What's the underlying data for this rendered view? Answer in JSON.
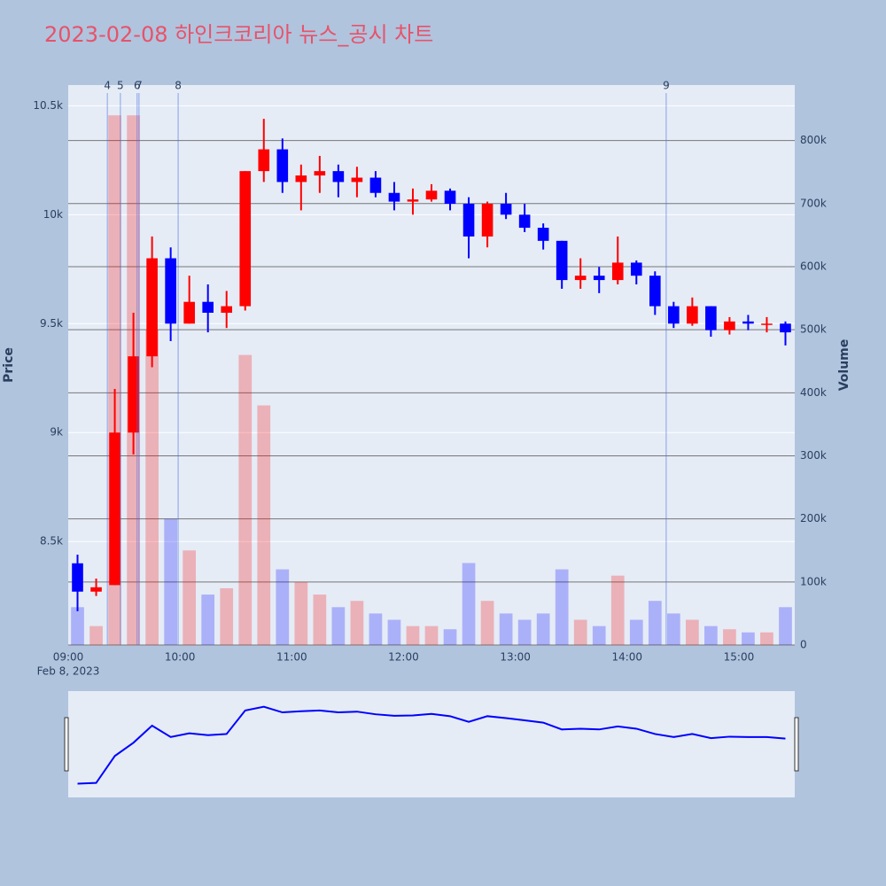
{
  "chart_data": {
    "type": "candlestick",
    "title": "2023-02-08 하인크코리아 뉴스_공시 차트",
    "x": [
      "09:00",
      "09:10",
      "09:20",
      "09:30",
      "09:40",
      "09:50",
      "10:00",
      "10:10",
      "10:20",
      "10:30",
      "10:40",
      "10:50",
      "11:00",
      "11:10",
      "11:20",
      "11:30",
      "11:40",
      "11:50",
      "12:00",
      "12:10",
      "12:20",
      "12:30",
      "12:40",
      "12:50",
      "13:00",
      "13:10",
      "13:20",
      "13:30",
      "13:40",
      "13:50",
      "14:00",
      "14:10",
      "14:20",
      "14:30",
      "14:40",
      "14:50",
      "15:00",
      "15:10",
      "15:20"
    ],
    "open": [
      8400,
      8270,
      8300,
      9000,
      9350,
      9800,
      9500,
      9600,
      9550,
      9580,
      10200,
      10300,
      10150,
      10180,
      10200,
      10150,
      10170,
      10100,
      10060,
      10070,
      10110,
      10050,
      9900,
      10050,
      10000,
      9940,
      9880,
      9700,
      9720,
      9700,
      9780,
      9720,
      9580,
      9500,
      9580,
      9470,
      9510,
      9500,
      9500
    ],
    "high": [
      8440,
      8330,
      9200,
      9550,
      9900,
      9850,
      9720,
      9680,
      9650,
      10200,
      10440,
      10350,
      10230,
      10270,
      10230,
      10220,
      10200,
      10150,
      10120,
      10140,
      10120,
      10080,
      10060,
      10100,
      10050,
      9960,
      9880,
      9800,
      9760,
      9900,
      9790,
      9740,
      9600,
      9620,
      9580,
      9530,
      9540,
      9530,
      9510
    ],
    "low": [
      8180,
      8250,
      8300,
      8900,
      9300,
      9420,
      9500,
      9460,
      9480,
      9560,
      10150,
      10100,
      10020,
      10100,
      10080,
      10080,
      10080,
      10020,
      10000,
      10060,
      10020,
      9800,
      9850,
      9980,
      9920,
      9840,
      9660,
      9660,
      9640,
      9680,
      9680,
      9540,
      9480,
      9490,
      9440,
      9450,
      9470,
      9460,
      9400
    ],
    "close": [
      8270,
      8290,
      9000,
      9350,
      9800,
      9500,
      9600,
      9550,
      9580,
      10200,
      10300,
      10150,
      10180,
      10200,
      10150,
      10170,
      10100,
      10060,
      10070,
      10110,
      10050,
      9900,
      10050,
      10000,
      9940,
      9880,
      9700,
      9720,
      9700,
      9780,
      9720,
      9580,
      9500,
      9580,
      9470,
      9510,
      9500,
      9500,
      9460
    ],
    "volume": [
      60000,
      30000,
      840000,
      840000,
      500000,
      200000,
      150000,
      80000,
      90000,
      460000,
      380000,
      120000,
      100000,
      80000,
      60000,
      70000,
      50000,
      40000,
      30000,
      30000,
      25000,
      130000,
      70000,
      50000,
      40000,
      50000,
      120000,
      40000,
      30000,
      110000,
      40000,
      70000,
      50000,
      40000,
      30000,
      25000,
      20000,
      20000,
      60000
    ],
    "increasing_color": "#ff0000",
    "decreasing_color": "#0000ff",
    "xlim": [
      "09:00",
      "15:30"
    ],
    "xticks": [
      "09:00",
      "10:00",
      "11:00",
      "12:00",
      "13:00",
      "14:00",
      "15:00"
    ],
    "x_subtitle": "Feb 8, 2023",
    "ylabel": "Price",
    "ylim": [
      8025,
      10595
    ],
    "yticks": [
      {
        "value": 8500,
        "label": "8.5k"
      },
      {
        "value": 9000,
        "label": "9k"
      },
      {
        "value": 9500,
        "label": "9.5k"
      },
      {
        "value": 10000,
        "label": "10k"
      },
      {
        "value": 10500,
        "label": "10.5k"
      }
    ],
    "y2label": "Volume",
    "y2lim": [
      0,
      888000
    ],
    "y2ticks": [
      0,
      {
        "value": 100000,
        "label": "100k"
      },
      {
        "value": 200000,
        "label": "200k"
      },
      {
        "value": 300000,
        "label": "300k"
      },
      {
        "value": 400000,
        "label": "400k"
      },
      {
        "value": 500000,
        "label": "500k"
      },
      {
        "value": 600000,
        "label": "600k"
      },
      {
        "value": 700000,
        "label": "700k"
      },
      {
        "value": 800000,
        "label": "800k"
      }
    ],
    "news": [
      {
        "label": "4",
        "time": "09:21"
      },
      {
        "label": "5",
        "time": "09:28"
      },
      {
        "label": "6",
        "time": "09:37"
      },
      {
        "label": "7",
        "time": "09:38"
      },
      {
        "label": "8",
        "time": "09:59"
      },
      {
        "label": "9",
        "time": "14:21"
      }
    ],
    "news_color": "#4a6fe3"
  }
}
